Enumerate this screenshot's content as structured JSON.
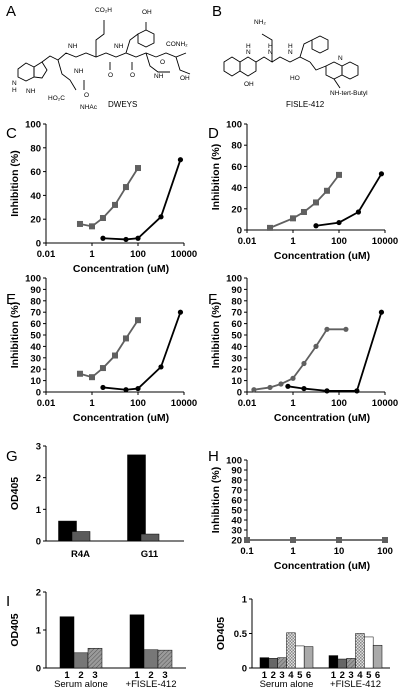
{
  "panels": {
    "A": {
      "letter": "A",
      "caption": "DWEYS",
      "atoms": [
        "CO₂H",
        "OH",
        "CONH₂",
        "OH",
        "NH",
        "NH",
        "NH",
        "NH",
        "NH",
        "O",
        "O",
        "O",
        "O",
        "HO₂C",
        "NHAc",
        "N",
        "H"
      ]
    },
    "B": {
      "letter": "B",
      "caption": "FISLE-412",
      "atoms": [
        "NH₂",
        "N",
        "H",
        "N",
        "H",
        "N",
        "H",
        "N",
        "OH",
        "HO",
        "NH-tert-Butyl"
      ]
    }
  },
  "chart_data": [
    {
      "id": "C",
      "letter": "C",
      "type": "line",
      "xscale": "log",
      "xlim": [
        0.01,
        10000
      ],
      "ylim": [
        0,
        100
      ],
      "xticks": [
        "0.01",
        "1",
        "100",
        "10000"
      ],
      "yticks": [
        "0",
        "20",
        "40",
        "60",
        "80",
        "100"
      ],
      "xlabel": "Concentration (uM)",
      "ylabel": "Inhibition (%)",
      "series": [
        {
          "color": "#606060",
          "marker": "square",
          "x": [
            0.3,
            1,
            3,
            10,
            30,
            100
          ],
          "y": [
            16,
            14,
            21,
            32,
            47,
            63
          ]
        },
        {
          "color": "#000000",
          "marker": "circle",
          "x": [
            3,
            30,
            100,
            1000,
            7000
          ],
          "y": [
            4,
            3,
            4,
            22,
            70
          ]
        }
      ]
    },
    {
      "id": "D",
      "letter": "D",
      "type": "line",
      "xscale": "log",
      "xlim": [
        0.01,
        10000
      ],
      "ylim": [
        0,
        100
      ],
      "xticks": [
        "0.01",
        "1",
        "100",
        "10000"
      ],
      "yticks": [
        "0",
        "20",
        "40",
        "60",
        "80",
        "100"
      ],
      "xlabel": "Concentration (uM)",
      "ylabel": "Inhibition (%)",
      "series": [
        {
          "color": "#606060",
          "marker": "square",
          "x": [
            0.1,
            1,
            3,
            10,
            30,
            100
          ],
          "y": [
            2,
            11,
            17,
            26,
            37,
            52
          ]
        },
        {
          "color": "#000000",
          "marker": "circle",
          "x": [
            10,
            100,
            700,
            7000
          ],
          "y": [
            4,
            7,
            17,
            53
          ]
        }
      ]
    },
    {
      "id": "E",
      "letter": "E",
      "type": "line",
      "xscale": "log",
      "xlim": [
        0.01,
        10000
      ],
      "ylim": [
        0,
        100
      ],
      "xticks": [
        "0.01",
        "1",
        "100",
        "10000"
      ],
      "yticks": [
        "0",
        "10",
        "20",
        "30",
        "40",
        "50",
        "60",
        "70",
        "80",
        "90",
        "100"
      ],
      "xlabel": "Concentration (uM)",
      "ylabel": "Inhibition (%)",
      "series": [
        {
          "color": "#606060",
          "marker": "square",
          "x": [
            0.3,
            1,
            3,
            10,
            30,
            100
          ],
          "y": [
            16,
            13,
            21,
            32,
            47,
            63
          ]
        },
        {
          "color": "#000000",
          "marker": "circle",
          "x": [
            3,
            30,
            100,
            1000,
            7000
          ],
          "y": [
            4,
            2,
            3,
            22,
            70
          ]
        }
      ]
    },
    {
      "id": "F",
      "letter": "F",
      "type": "line",
      "xscale": "log",
      "xlim": [
        0.01,
        10000
      ],
      "ylim": [
        0,
        100
      ],
      "xticks": [
        "0.01",
        "1",
        "100",
        "10000"
      ],
      "yticks": [
        "0",
        "10",
        "20",
        "30",
        "40",
        "50",
        "60",
        "70",
        "80",
        "90",
        "100"
      ],
      "xlabel": "Concentration (uM)",
      "ylabel": "Inhibition (%)",
      "series": [
        {
          "color": "#606060",
          "marker": "circle",
          "x": [
            0.02,
            0.1,
            0.3,
            1,
            3,
            10,
            30,
            200
          ],
          "y": [
            2,
            4,
            7,
            12,
            25,
            40,
            55,
            55
          ]
        },
        {
          "color": "#000000",
          "marker": "circle",
          "x": [
            0.6,
            3,
            30,
            600,
            7000
          ],
          "y": [
            5,
            3,
            1,
            1,
            70
          ]
        }
      ]
    },
    {
      "id": "G",
      "letter": "G",
      "type": "bar",
      "ylim": [
        0,
        3
      ],
      "yticks": [
        "0",
        "1",
        "2",
        "3"
      ],
      "ylabel": "OD405",
      "categories": [
        "R4A",
        "G11"
      ],
      "series": [
        {
          "color": "#000000",
          "values": [
            0.63,
            2.72
          ]
        },
        {
          "color": "#5a5a5a",
          "values": [
            0.3,
            0.22
          ]
        }
      ]
    },
    {
      "id": "H",
      "letter": "H",
      "type": "line",
      "xscale": "log",
      "xlim": [
        0.1,
        100
      ],
      "ylim": [
        20,
        100
      ],
      "xticks": [
        "0.1",
        "1",
        "10",
        "100"
      ],
      "yticks": [
        "20",
        "30",
        "40",
        "50",
        "60",
        "70",
        "80",
        "90",
        "100"
      ],
      "xlabel": "Concentration (uM)",
      "ylabel": "Inhibition (%)",
      "series": [
        {
          "color": "#606060",
          "marker": "square",
          "x": [
            0.1,
            1,
            10,
            100
          ],
          "y": [
            20,
            20,
            20,
            20
          ]
        }
      ]
    },
    {
      "id": "I1",
      "letter": "I",
      "type": "bar",
      "ylim": [
        0,
        2
      ],
      "yticks": [
        "0",
        "1",
        "2"
      ],
      "ylabel": "OD405",
      "groups": [
        "Serum alone",
        "+FISLE-412"
      ],
      "bar_labels": [
        "1",
        "2",
        "3",
        "1",
        "2",
        "3"
      ],
      "series": [
        {
          "color": "#000000",
          "values": [
            1.35,
            1.4
          ]
        },
        {
          "color": "#777777",
          "values": [
            0.4,
            0.48
          ]
        },
        {
          "color": "#999999",
          "pattern": "hatch",
          "values": [
            0.52,
            0.47
          ]
        }
      ]
    },
    {
      "id": "I2",
      "letter": "",
      "type": "bar",
      "ylim": [
        0,
        1
      ],
      "yticks": [
        "0",
        "0.5",
        "1"
      ],
      "ylabel": "OD405",
      "groups": [
        "Serum alone",
        "+FISLE-412"
      ],
      "bar_labels": [
        "1",
        "2",
        "3",
        "4",
        "5",
        "6",
        "1",
        "2",
        "3",
        "4",
        "5",
        "6"
      ],
      "series": [
        {
          "color": "#000000",
          "values": [
            0.15,
            0.18
          ]
        },
        {
          "color": "#666666",
          "values": [
            0.14,
            0.13
          ]
        },
        {
          "color": "#999999",
          "pattern": "hatch",
          "values": [
            0.15,
            0.14
          ]
        },
        {
          "color": "#cccccc",
          "pattern": "check",
          "values": [
            0.51,
            0.5
          ]
        },
        {
          "color": "#ffffff",
          "values": [
            0.32,
            0.45
          ]
        },
        {
          "color": "#aaaaaa",
          "values": [
            0.31,
            0.33
          ]
        }
      ]
    }
  ]
}
